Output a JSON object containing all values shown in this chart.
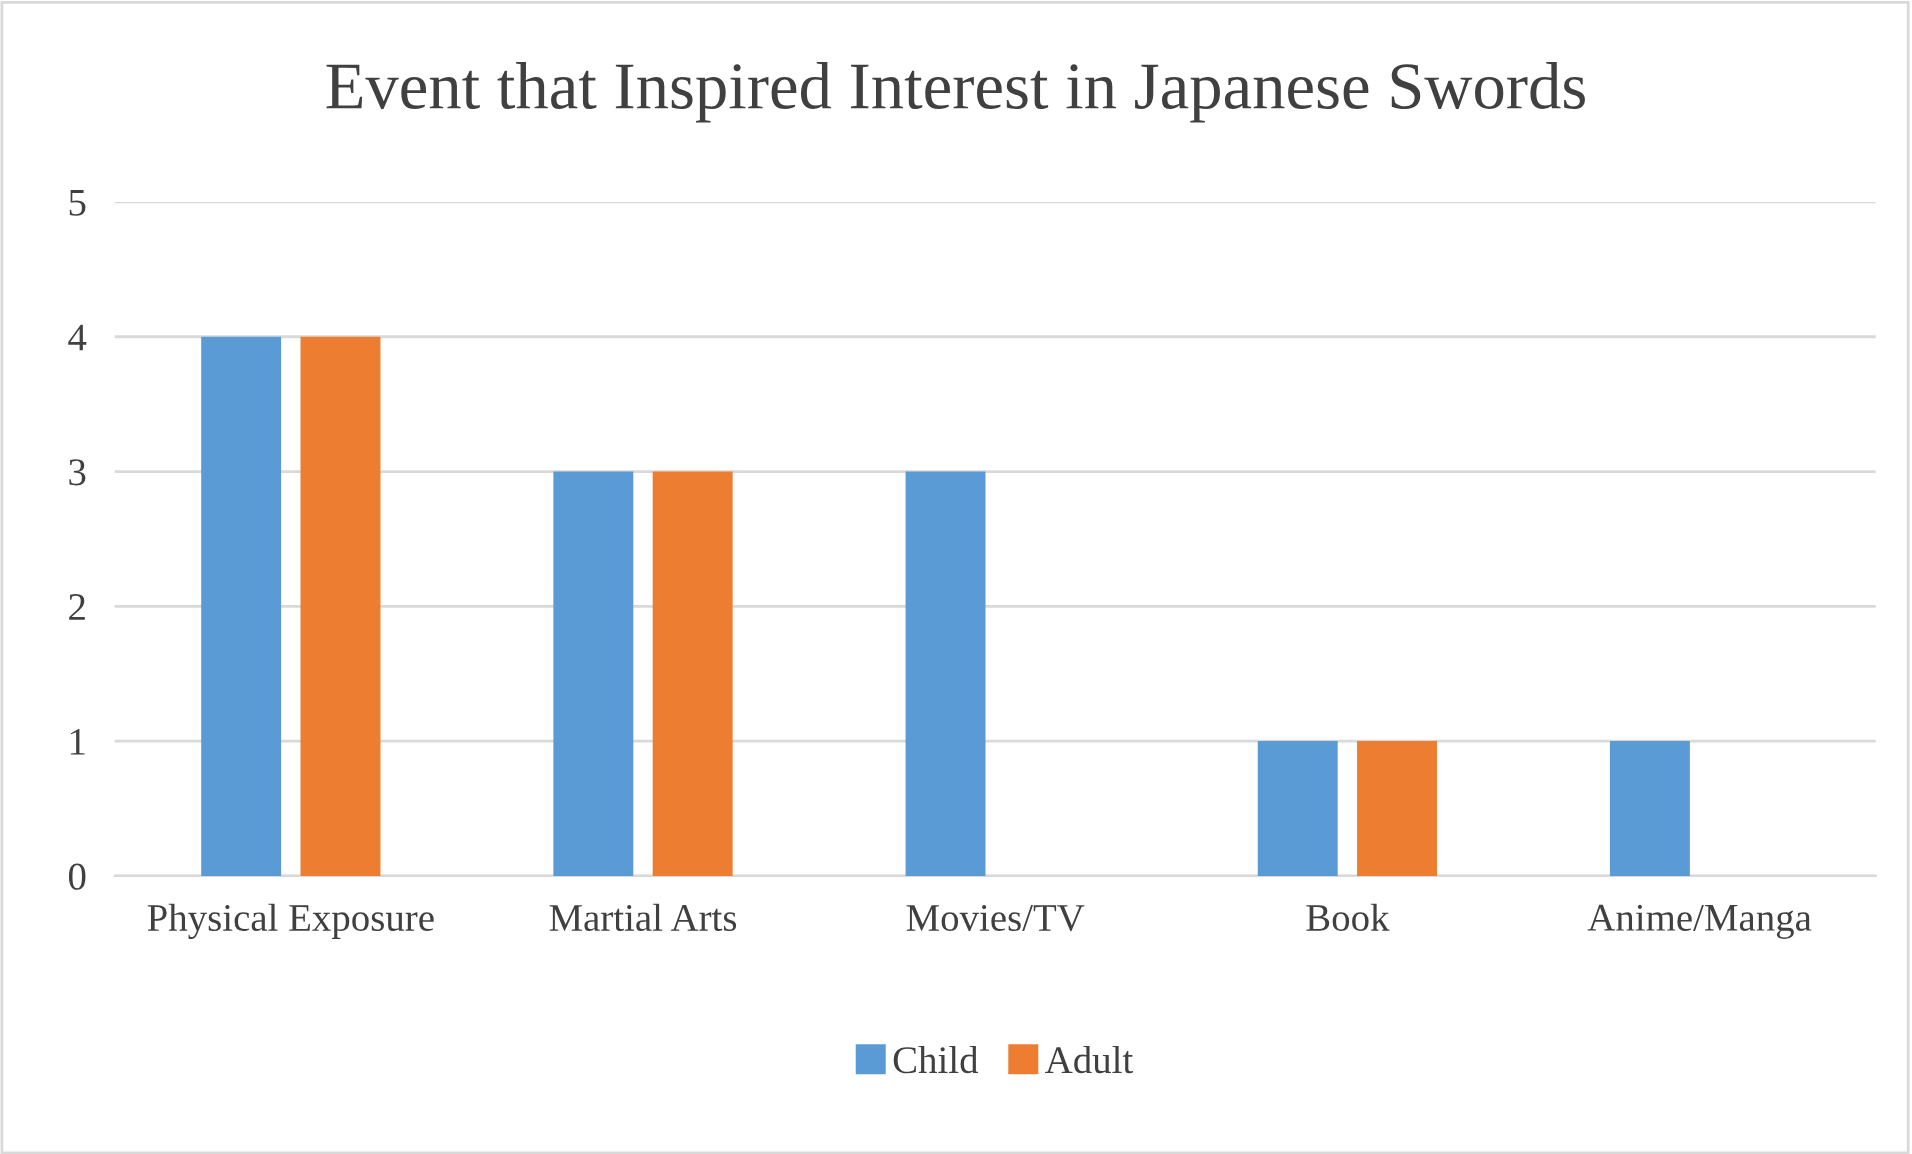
{
  "chart_data": {
    "type": "bar",
    "title": "Event that Inspired Interest in Japanese Swords",
    "categories": [
      "Physical Exposure",
      "Martial Arts",
      "Movies/TV",
      "Book",
      "Anime/Manga"
    ],
    "series": [
      {
        "name": "Child",
        "color": "#5b9bd5",
        "values": [
          4,
          3,
          3,
          1,
          1
        ]
      },
      {
        "name": "Adult",
        "color": "#ed7d31",
        "values": [
          4,
          3,
          0,
          1,
          0
        ]
      }
    ],
    "ylim": [
      0,
      5
    ],
    "yticks": [
      0,
      1,
      2,
      3,
      4,
      5
    ],
    "grid": "y",
    "legend": "bottom"
  }
}
